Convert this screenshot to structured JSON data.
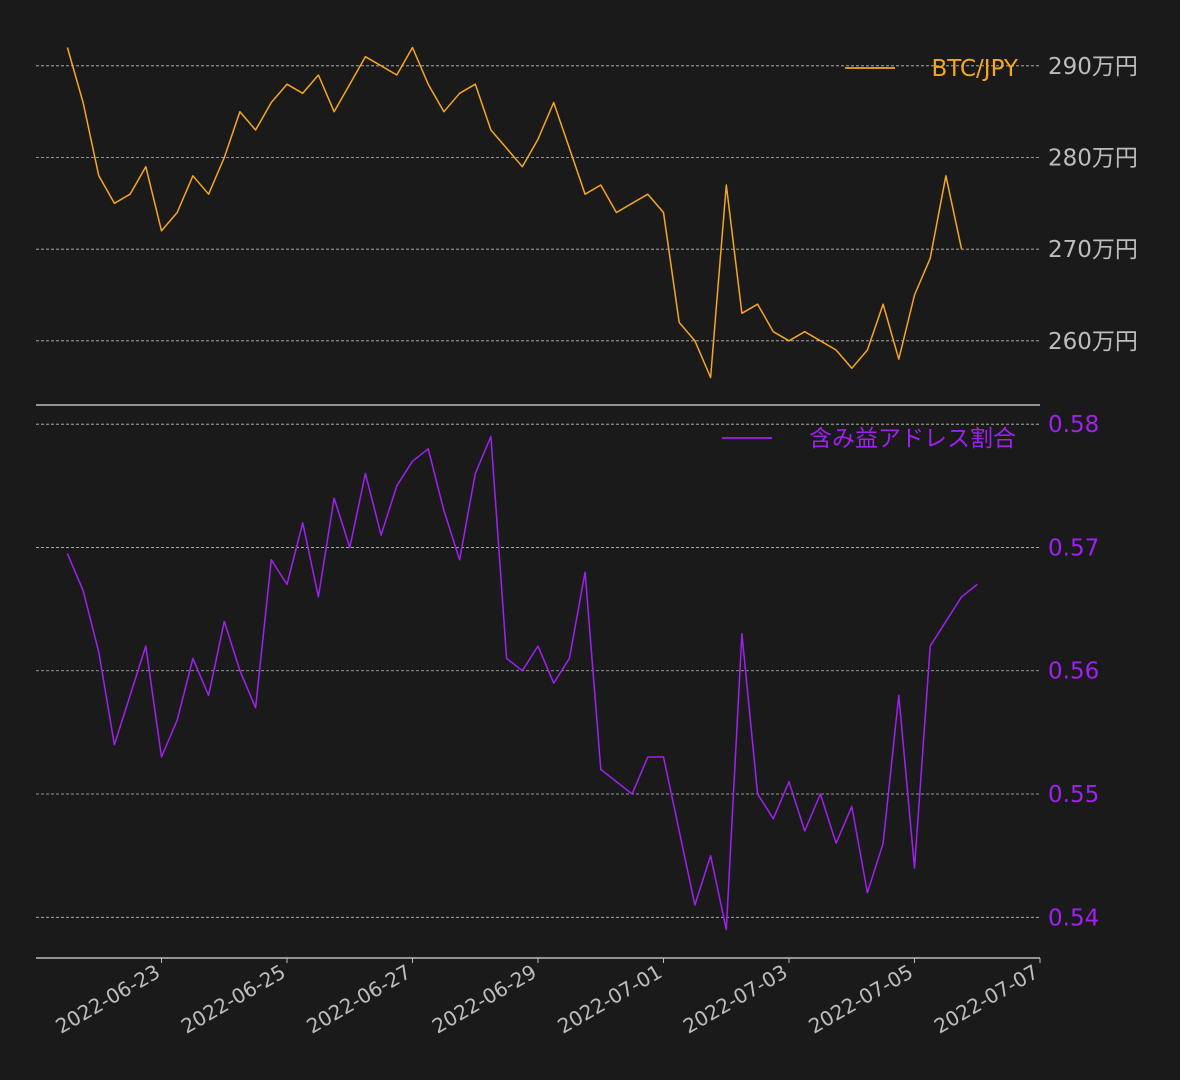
{
  "colors": {
    "background": "#1a1a1a",
    "grid": "#bdbdbd",
    "axis_text": "#bdbdbd",
    "btc": "#f5a623",
    "ratio": "#a020f0"
  },
  "chart_data": [
    {
      "type": "line",
      "title": "",
      "ylabel": "",
      "y_axis_side": "right",
      "yticks": [
        {
          "value": 2900000,
          "label": "290万円"
        },
        {
          "value": 2800000,
          "label": "280万円"
        },
        {
          "value": 2700000,
          "label": "270万円"
        },
        {
          "value": 2600000,
          "label": "260万円"
        }
      ],
      "ylim": [
        2530000,
        2950000
      ],
      "grid": true,
      "legend_position": "top-right",
      "series": [
        {
          "name": "BTC/JPY",
          "x": [
            "2022-06-21T12:00",
            "2022-06-21T18:00",
            "2022-06-22T00:00",
            "2022-06-22T06:00",
            "2022-06-22T12:00",
            "2022-06-22T18:00",
            "2022-06-23T00:00",
            "2022-06-23T06:00",
            "2022-06-23T12:00",
            "2022-06-23T18:00",
            "2022-06-24T00:00",
            "2022-06-24T06:00",
            "2022-06-24T12:00",
            "2022-06-24T18:00",
            "2022-06-25T00:00",
            "2022-06-25T06:00",
            "2022-06-25T12:00",
            "2022-06-25T18:00",
            "2022-06-26T00:00",
            "2022-06-26T06:00",
            "2022-06-26T12:00",
            "2022-06-26T18:00",
            "2022-06-27T00:00",
            "2022-06-27T06:00",
            "2022-06-27T12:00",
            "2022-06-27T18:00",
            "2022-06-28T00:00",
            "2022-06-28T06:00",
            "2022-06-28T12:00",
            "2022-06-28T18:00",
            "2022-06-29T00:00",
            "2022-06-29T06:00",
            "2022-06-29T12:00",
            "2022-06-29T18:00",
            "2022-06-30T00:00",
            "2022-06-30T06:00",
            "2022-06-30T12:00",
            "2022-06-30T18:00",
            "2022-07-01T00:00",
            "2022-07-01T06:00",
            "2022-07-01T12:00",
            "2022-07-01T18:00",
            "2022-07-02T00:00",
            "2022-07-02T06:00",
            "2022-07-02T12:00",
            "2022-07-02T18:00",
            "2022-07-03T00:00",
            "2022-07-03T06:00",
            "2022-07-03T12:00",
            "2022-07-03T18:00",
            "2022-07-04T00:00",
            "2022-07-04T06:00",
            "2022-07-04T12:00",
            "2022-07-04T18:00",
            "2022-07-05T00:00",
            "2022-07-05T06:00",
            "2022-07-05T12:00",
            "2022-07-05T18:00"
          ],
          "values": [
            2920000,
            2860000,
            2780000,
            2750000,
            2760000,
            2790000,
            2720000,
            2740000,
            2780000,
            2760000,
            2800000,
            2850000,
            2830000,
            2860000,
            2880000,
            2870000,
            2890000,
            2850000,
            2880000,
            2910000,
            2900000,
            2890000,
            2920000,
            2880000,
            2850000,
            2870000,
            2880000,
            2830000,
            2810000,
            2790000,
            2820000,
            2860000,
            2810000,
            2760000,
            2770000,
            2740000,
            2750000,
            2760000,
            2740000,
            2620000,
            2600000,
            2560000,
            2770000,
            2630000,
            2640000,
            2610000,
            2600000,
            2610000,
            2600000,
            2590000,
            2570000,
            2590000,
            2640000,
            2580000,
            2650000,
            2690000,
            2780000,
            2700000
          ]
        }
      ]
    },
    {
      "type": "line",
      "title": "",
      "ylabel": "",
      "y_axis_side": "right",
      "yticks": [
        {
          "value": 0.58,
          "label": "0.58"
        },
        {
          "value": 0.57,
          "label": "0.57"
        },
        {
          "value": 0.56,
          "label": "0.56"
        },
        {
          "value": 0.55,
          "label": "0.55"
        },
        {
          "value": 0.54,
          "label": "0.54"
        }
      ],
      "ylim": [
        0.5367,
        0.5805
      ],
      "grid": true,
      "legend_position": "top-right",
      "xticks": [
        "2022-06-23",
        "2022-06-25",
        "2022-06-27",
        "2022-06-29",
        "2022-07-01",
        "2022-07-03",
        "2022-07-05",
        "2022-07-07"
      ],
      "series": [
        {
          "name": "含み益アドレス割合",
          "x": [
            "2022-06-21T12:00",
            "2022-06-21T18:00",
            "2022-06-22T00:00",
            "2022-06-22T06:00",
            "2022-06-22T12:00",
            "2022-06-22T18:00",
            "2022-06-23T00:00",
            "2022-06-23T06:00",
            "2022-06-23T12:00",
            "2022-06-23T18:00",
            "2022-06-24T00:00",
            "2022-06-24T06:00",
            "2022-06-24T12:00",
            "2022-06-24T18:00",
            "2022-06-25T00:00",
            "2022-06-25T06:00",
            "2022-06-25T12:00",
            "2022-06-25T18:00",
            "2022-06-26T00:00",
            "2022-06-26T06:00",
            "2022-06-26T12:00",
            "2022-06-26T18:00",
            "2022-06-27T00:00",
            "2022-06-27T06:00",
            "2022-06-27T12:00",
            "2022-06-27T18:00",
            "2022-06-28T00:00",
            "2022-06-28T06:00",
            "2022-06-28T12:00",
            "2022-06-28T18:00",
            "2022-06-29T00:00",
            "2022-06-29T06:00",
            "2022-06-29T12:00",
            "2022-06-29T18:00",
            "2022-06-30T00:00",
            "2022-06-30T06:00",
            "2022-06-30T12:00",
            "2022-06-30T18:00",
            "2022-07-01T00:00",
            "2022-07-01T06:00",
            "2022-07-01T12:00",
            "2022-07-01T18:00",
            "2022-07-02T00:00",
            "2022-07-02T06:00",
            "2022-07-02T12:00",
            "2022-07-02T18:00",
            "2022-07-03T00:00",
            "2022-07-03T06:00",
            "2022-07-03T12:00",
            "2022-07-03T18:00",
            "2022-07-04T00:00",
            "2022-07-04T06:00",
            "2022-07-04T12:00",
            "2022-07-04T18:00",
            "2022-07-05T00:00",
            "2022-07-05T06:00",
            "2022-07-05T12:00",
            "2022-07-05T18:00",
            "2022-07-06T00:00"
          ],
          "values": [
            0.5695,
            0.5665,
            0.5615,
            0.554,
            0.558,
            0.562,
            0.553,
            0.556,
            0.561,
            0.558,
            0.564,
            0.56,
            0.557,
            0.569,
            0.567,
            0.572,
            0.566,
            0.574,
            0.57,
            0.576,
            0.571,
            0.575,
            0.577,
            0.578,
            0.573,
            0.569,
            0.576,
            0.579,
            0.561,
            0.56,
            0.562,
            0.559,
            0.561,
            0.568,
            0.552,
            0.551,
            0.55,
            0.553,
            0.553,
            0.547,
            0.541,
            0.545,
            0.539,
            0.563,
            0.55,
            0.548,
            0.551,
            0.547,
            0.55,
            0.546,
            0.549,
            0.542,
            0.546,
            0.558,
            0.544,
            0.562,
            0.564,
            0.566,
            0.567
          ]
        }
      ]
    }
  ],
  "x_axis": {
    "type": "date",
    "range": [
      "2022-06-21",
      "2022-07-07"
    ],
    "tick_labels": [
      "2022-06-23",
      "2022-06-25",
      "2022-06-27",
      "2022-06-29",
      "2022-07-01",
      "2022-07-03",
      "2022-07-05",
      "2022-07-07"
    ]
  }
}
